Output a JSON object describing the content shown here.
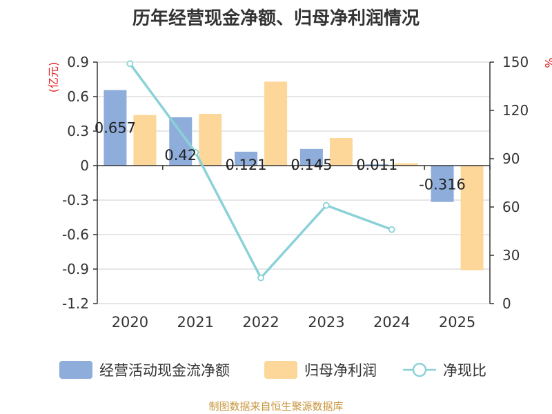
{
  "chart_data": {
    "type": "bar+line",
    "title": "历年经营现金净额、归母净利润情况",
    "categories": [
      "2020",
      "2021",
      "2022",
      "2023",
      "2024",
      "2025"
    ],
    "y_left": {
      "unit": "(亿元)",
      "min": -1.2,
      "max": 0.9,
      "step": 0.3,
      "ticks": [
        "0.9",
        "0.6",
        "0.3",
        "0",
        "-0.3",
        "-0.6",
        "-0.9",
        "-1.2"
      ]
    },
    "y_right": {
      "unit": "%",
      "min": 0,
      "max": 150,
      "step": 30,
      "ticks": [
        "150",
        "120",
        "90",
        "60",
        "30",
        "0"
      ]
    },
    "series": [
      {
        "name": "经营活动现金流净额",
        "type": "bar",
        "axis": "left",
        "color": "#8eaddb",
        "values": [
          0.657,
          0.42,
          0.121,
          0.145,
          0.011,
          -0.316
        ],
        "labels": [
          "0.657",
          "0.42",
          "0.121",
          "0.145",
          "0.011",
          "-0.316"
        ]
      },
      {
        "name": "归母净利润",
        "type": "bar",
        "axis": "left",
        "color": "#fdd799",
        "values": [
          0.44,
          0.45,
          0.73,
          0.24,
          0.02,
          -0.91
        ]
      },
      {
        "name": "净现比",
        "type": "line",
        "axis": "right",
        "color": "#8ad2d8",
        "values": [
          149,
          94,
          16,
          61,
          46,
          null
        ]
      }
    ],
    "source": "制图数据来自恒生聚源数据库"
  }
}
